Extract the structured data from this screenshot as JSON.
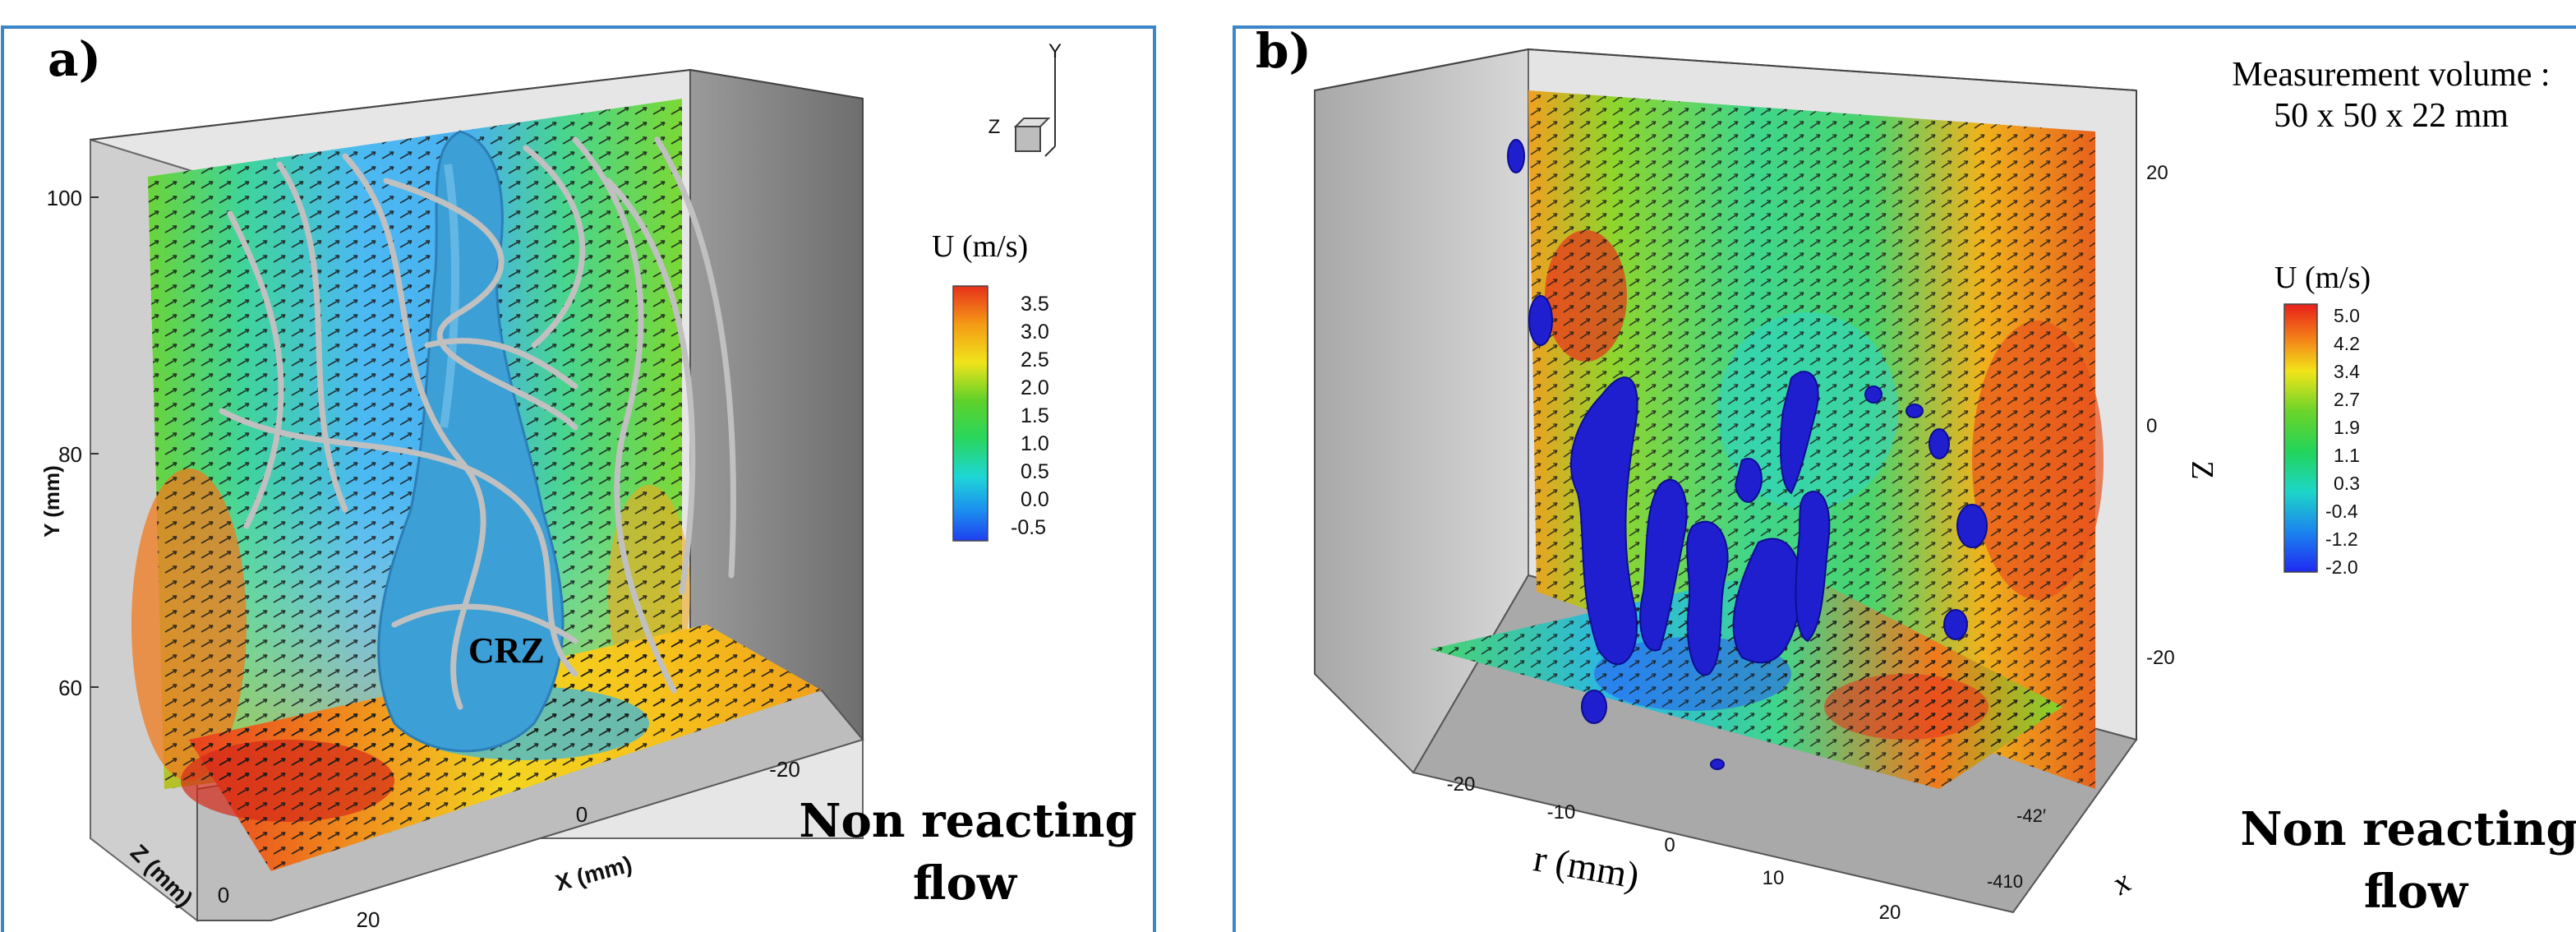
{
  "panel_a": {
    "label": "a)",
    "colorbar_title": "U (m/s)",
    "colorbar_ticks": [
      "3.5",
      "3.0",
      "2.5",
      "2.0",
      "1.5",
      "1.0",
      "0.5",
      "0.0",
      "-0.5"
    ],
    "axis_y_title": "Y (mm)",
    "axis_y_ticks": [
      "100",
      "80",
      "60"
    ],
    "axis_x_title": "X (mm)",
    "axis_x_ticks": [
      "0",
      "-20"
    ],
    "axis_z_title": "Z (mm)",
    "axis_z_ticks": [
      "0",
      "20"
    ],
    "triad": {
      "y": "Y",
      "z": "Z"
    },
    "annotation": "CRZ",
    "note_line1": "Non reacting",
    "note_line2": "flow"
  },
  "panel_b": {
    "label": "b)",
    "volume_line1": "Measurement volume :",
    "volume_line2": "50 x 50 x 22 mm",
    "colorbar_title": "U (m/s)",
    "colorbar_ticks": [
      "5.0",
      "4.2",
      "3.4",
      "2.7",
      "1.9",
      "1.1",
      "0.3",
      "-0.4",
      "-1.2",
      "-2.0"
    ],
    "axis_z_title": "Z",
    "axis_z_ticks": [
      "20",
      "0",
      "-20"
    ],
    "axis_r_title": "r (mm)",
    "axis_r_ticks": [
      "-20",
      "-10",
      "0",
      "10",
      "20"
    ],
    "axis_x_title": "x",
    "axis_x_ticks": [
      "-42′",
      "-410"
    ],
    "note_line1": "Non reacting",
    "note_line2": "flow"
  },
  "colors": {
    "frame_border": "#3a86c8",
    "isosurface_a": "#3c9fd6",
    "isosurface_b": "#1f1fd0",
    "streamline": "#c0c0c0",
    "wall_grey": "#8c8c8c"
  }
}
